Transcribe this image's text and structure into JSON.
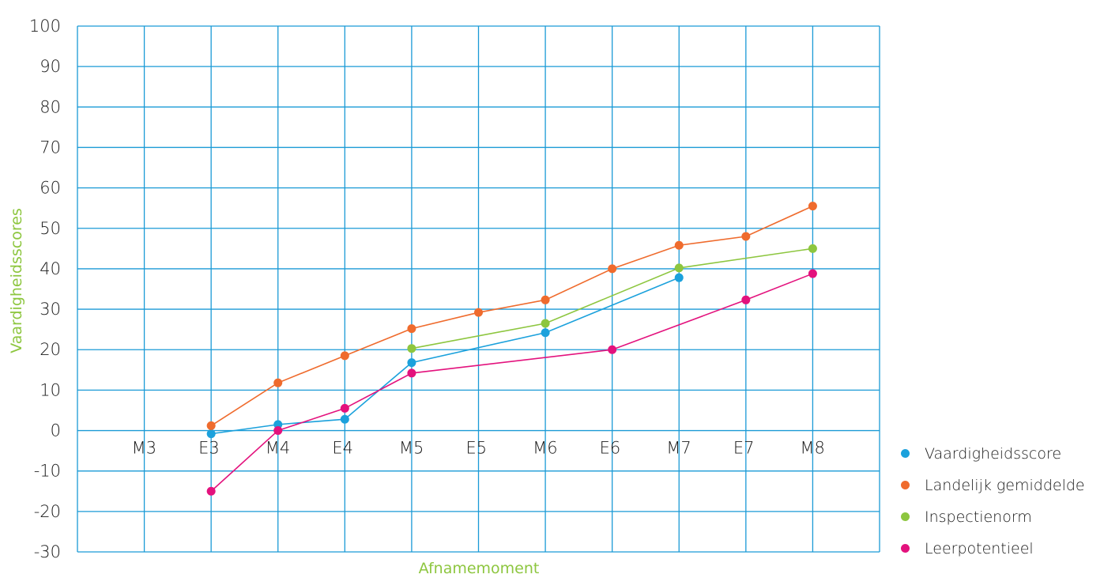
{
  "chart_data": {
    "type": "line",
    "xlabel": "Afnamemoment",
    "ylabel": "Vaardigheidsscores",
    "ylim": [
      -30,
      100
    ],
    "yticks": [
      100,
      90,
      80,
      70,
      60,
      50,
      40,
      30,
      20,
      10,
      0,
      -10,
      -20,
      -30
    ],
    "categories": [
      "M3",
      "E3",
      "M4",
      "E4",
      "M5",
      "E5",
      "M6",
      "E6",
      "M7",
      "E7",
      "M8"
    ],
    "grid": true,
    "legend_position": "bottom-right",
    "axis_label_color": "#8dc63f",
    "grid_color": "#1a9ad6",
    "series": [
      {
        "name": "Vaardigheidsscore",
        "color": "#1ba1dc",
        "values": [
          null,
          -0.8,
          1.5,
          2.8,
          16.8,
          null,
          24.2,
          null,
          37.8,
          null,
          null
        ]
      },
      {
        "name": "Landelijk gemiddelde",
        "color": "#ef6b2d",
        "values": [
          null,
          1.2,
          11.8,
          18.5,
          25.2,
          29.2,
          32.3,
          40.0,
          45.8,
          48.0,
          55.5
        ]
      },
      {
        "name": "Inspectienorm",
        "color": "#8dc63f",
        "values": [
          null,
          null,
          null,
          null,
          20.3,
          null,
          26.5,
          null,
          40.2,
          null,
          45.0
        ]
      },
      {
        "name": "Leerpotentieel",
        "color": "#e3127d",
        "values": [
          null,
          -15.0,
          0.0,
          5.5,
          14.2,
          null,
          null,
          20.0,
          null,
          32.3,
          38.8
        ]
      }
    ]
  }
}
